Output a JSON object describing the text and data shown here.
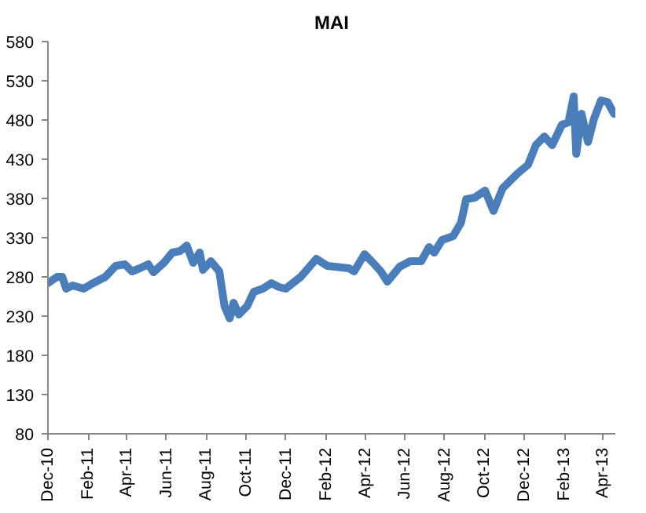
{
  "chart_data": {
    "type": "line",
    "title": "MAI",
    "line_style": "solid",
    "marker": "none",
    "grid": false,
    "x": [
      "2010-12-01",
      "2010-12-15",
      "2010-12-23",
      "2010-12-29",
      "2011-01-08",
      "2011-01-25",
      "2011-02-06",
      "2011-02-27",
      "2011-03-15",
      "2011-03-29",
      "2011-04-09",
      "2011-04-21",
      "2011-05-04",
      "2011-05-12",
      "2011-05-28",
      "2011-06-10",
      "2011-06-22",
      "2011-07-02",
      "2011-07-12",
      "2011-07-22",
      "2011-07-27",
      "2011-08-08",
      "2011-08-21",
      "2011-08-29",
      "2011-09-06",
      "2011-09-12",
      "2011-09-20",
      "2011-10-03",
      "2011-10-13",
      "2011-10-27",
      "2011-11-09",
      "2011-11-21",
      "2011-12-01",
      "2011-12-24",
      "2012-01-17",
      "2012-02-03",
      "2012-03-07",
      "2012-03-15",
      "2012-03-31",
      "2012-04-13",
      "2012-04-25",
      "2012-05-05",
      "2012-05-24",
      "2012-06-09",
      "2012-06-26",
      "2012-07-08",
      "2012-07-16",
      "2012-07-28",
      "2012-08-14",
      "2012-08-26",
      "2012-09-03",
      "2012-09-16",
      "2012-10-02",
      "2012-10-15",
      "2012-10-29",
      "2012-11-21",
      "2012-12-07",
      "2012-12-19",
      "2013-01-01",
      "2013-01-13",
      "2013-01-28",
      "2013-02-07",
      "2013-02-15",
      "2013-02-19",
      "2013-02-27",
      "2013-03-09",
      "2013-03-18",
      "2013-03-29",
      "2013-04-08",
      "2013-04-18"
    ],
    "series": [
      {
        "color": "#4a7ebb",
        "values": [
          272,
          280,
          280,
          265,
          269,
          265,
          271,
          280,
          294,
          296,
          287,
          291,
          296,
          286,
          298,
          311,
          313,
          320,
          298,
          311,
          289,
          300,
          287,
          243,
          227,
          247,
          232,
          243,
          261,
          265,
          272,
          267,
          265,
          280,
          303,
          294,
          291,
          287,
          309,
          298,
          287,
          274,
          293,
          300,
          300,
          318,
          311,
          327,
          332,
          349,
          379,
          381,
          390,
          364,
          393,
          412,
          423,
          448,
          459,
          448,
          474,
          477,
          510,
          437,
          488,
          452,
          481,
          505,
          503,
          488
        ]
      }
    ],
    "xlim": [
      "2010-12-01",
      "2013-04-20"
    ],
    "xticks": [
      {
        "value": "2010-12-01",
        "label": "Dec-10"
      },
      {
        "value": "2011-02-01",
        "label": "Feb-11"
      },
      {
        "value": "2011-04-01",
        "label": "Apr-11"
      },
      {
        "value": "2011-06-01",
        "label": "Jun-11"
      },
      {
        "value": "2011-08-01",
        "label": "Aug-11"
      },
      {
        "value": "2011-10-01",
        "label": "Oct-11"
      },
      {
        "value": "2011-12-01",
        "label": "Dec-11"
      },
      {
        "value": "2012-02-01",
        "label": "Feb-12"
      },
      {
        "value": "2012-04-01",
        "label": "Apr-12"
      },
      {
        "value": "2012-06-01",
        "label": "Jun-12"
      },
      {
        "value": "2012-08-01",
        "label": "Aug-12"
      },
      {
        "value": "2012-10-01",
        "label": "Oct-12"
      },
      {
        "value": "2012-12-01",
        "label": "Dec-12"
      },
      {
        "value": "2013-02-01",
        "label": "Feb-13"
      },
      {
        "value": "2013-04-01",
        "label": "Apr-13"
      }
    ],
    "ylim": [
      80,
      580
    ],
    "yticks": [
      80,
      130,
      180,
      230,
      280,
      330,
      380,
      430,
      480,
      530,
      580
    ]
  }
}
